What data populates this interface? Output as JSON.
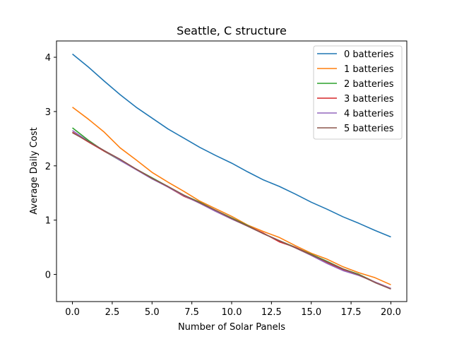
{
  "chart_data": {
    "type": "line",
    "title": "Seattle, C structure",
    "xlabel": "Number of Solar Panels",
    "ylabel": "Average Daily Cost",
    "xlim": [
      -1,
      21
    ],
    "ylim": [
      -0.5,
      4.3
    ],
    "xticks": [
      0.0,
      2.5,
      5.0,
      7.5,
      10.0,
      12.5,
      15.0,
      17.5,
      20.0
    ],
    "xtick_labels": [
      "0.0",
      "2.5",
      "5.0",
      "7.5",
      "10.0",
      "12.5",
      "15.0",
      "17.5",
      "20.0"
    ],
    "yticks": [
      0,
      1,
      2,
      3,
      4
    ],
    "ytick_labels": [
      "0",
      "1",
      "2",
      "3",
      "4"
    ],
    "grid": false,
    "legend_position": "top-right",
    "x": [
      0,
      1,
      2,
      3,
      4,
      5,
      6,
      7,
      8,
      9,
      10,
      11,
      12,
      13,
      14,
      15,
      16,
      17,
      18,
      19,
      20
    ],
    "series": [
      {
        "name": "0 batteries",
        "color": "#1f77b4",
        "values": [
          4.06,
          3.82,
          3.56,
          3.31,
          3.08,
          2.88,
          2.68,
          2.51,
          2.34,
          2.19,
          2.05,
          1.89,
          1.74,
          1.62,
          1.48,
          1.33,
          1.2,
          1.06,
          0.94,
          0.81,
          0.69
        ]
      },
      {
        "name": "1 batteries",
        "color": "#ff7f0e",
        "values": [
          3.08,
          2.86,
          2.62,
          2.33,
          2.11,
          1.88,
          1.7,
          1.53,
          1.35,
          1.21,
          1.07,
          0.91,
          0.79,
          0.68,
          0.53,
          0.39,
          0.28,
          0.14,
          0.03,
          -0.06,
          -0.19
        ]
      },
      {
        "name": "2 batteries",
        "color": "#2ca02c",
        "values": [
          2.7,
          2.47,
          2.27,
          2.1,
          1.94,
          1.78,
          1.62,
          1.46,
          1.33,
          1.18,
          1.04,
          0.9,
          0.75,
          0.62,
          0.5,
          0.37,
          0.24,
          0.1,
          0.0,
          -0.14,
          -0.26
        ]
      },
      {
        "name": "3 batteries",
        "color": "#d62728",
        "values": [
          2.62,
          2.44,
          2.27,
          2.11,
          1.94,
          1.77,
          1.61,
          1.44,
          1.32,
          1.17,
          1.03,
          0.89,
          0.76,
          0.6,
          0.5,
          0.36,
          0.22,
          0.08,
          -0.01,
          -0.14,
          -0.26
        ]
      },
      {
        "name": "4 batteries",
        "color": "#9467bd",
        "values": [
          2.65,
          2.45,
          2.28,
          2.1,
          1.93,
          1.76,
          1.61,
          1.45,
          1.31,
          1.16,
          1.02,
          0.89,
          0.75,
          0.62,
          0.49,
          0.35,
          0.2,
          0.07,
          -0.02,
          -0.14,
          -0.26
        ]
      },
      {
        "name": "5 batteries",
        "color": "#8c564b",
        "values": [
          2.61,
          2.45,
          2.28,
          2.12,
          1.94,
          1.77,
          1.62,
          1.46,
          1.32,
          1.18,
          1.03,
          0.89,
          0.75,
          0.62,
          0.49,
          0.36,
          0.23,
          0.1,
          -0.01,
          -0.15,
          -0.27
        ]
      }
    ]
  }
}
